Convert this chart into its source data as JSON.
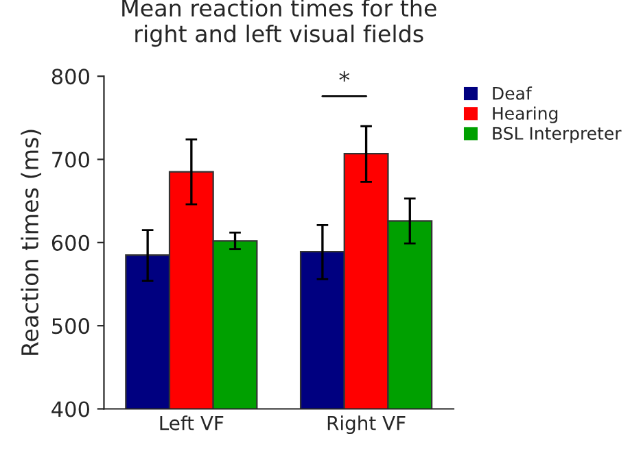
{
  "chart_data": {
    "type": "bar",
    "title": "Mean reaction times for the\nright and left visual fields",
    "ylabel": "Reaction times (ms)",
    "categories": [
      "Left VF",
      "Right VF"
    ],
    "series": [
      {
        "name": "Deaf",
        "color": "#000080",
        "values": [
          585,
          589
        ],
        "errors": [
          [
            554,
            615
          ],
          [
            556,
            621
          ]
        ]
      },
      {
        "name": "Hearing",
        "color": "#ff0000",
        "values": [
          685,
          707
        ],
        "errors": [
          [
            646,
            724
          ],
          [
            673,
            740
          ]
        ]
      },
      {
        "name": "BSL Interpreter",
        "color": "#00a000",
        "values": [
          602,
          626
        ],
        "errors": [
          [
            592,
            612
          ],
          [
            599,
            653
          ]
        ]
      }
    ],
    "ylim": [
      400,
      800
    ],
    "yticks": [
      400,
      500,
      600,
      700,
      800
    ],
    "grid": false,
    "legend": "top right",
    "annotations": [
      "*"
    ]
  }
}
